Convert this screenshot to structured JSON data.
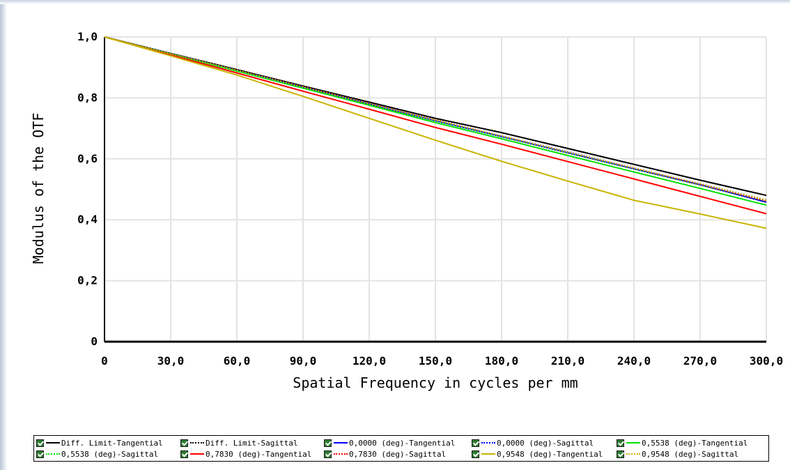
{
  "chart_data": {
    "type": "line",
    "title": "",
    "xlabel": "Spatial Frequency in cycles per mm",
    "ylabel": "Modulus of the OTF",
    "xlim": [
      0,
      300
    ],
    "ylim": [
      0,
      1
    ],
    "x_ticks": [
      {
        "v": 0,
        "label": "0"
      },
      {
        "v": 30,
        "label": "30,0"
      },
      {
        "v": 60,
        "label": "60,0"
      },
      {
        "v": 90,
        "label": "90,0"
      },
      {
        "v": 120,
        "label": "120,0"
      },
      {
        "v": 150,
        "label": "150,0"
      },
      {
        "v": 180,
        "label": "180,0"
      },
      {
        "v": 210,
        "label": "210,0"
      },
      {
        "v": 240,
        "label": "240,0"
      },
      {
        "v": 270,
        "label": "270,0"
      },
      {
        "v": 300,
        "label": "300,0"
      }
    ],
    "y_ticks": [
      {
        "v": 0,
        "label": "0"
      },
      {
        "v": 0.2,
        "label": "0,2"
      },
      {
        "v": 0.4,
        "label": "0,4"
      },
      {
        "v": 0.6,
        "label": "0,6"
      },
      {
        "v": 0.8,
        "label": "0,8"
      },
      {
        "v": 1.0,
        "label": "1,0"
      }
    ],
    "grid": true,
    "legend_position": "bottom",
    "series": [
      {
        "name": "Diff. Limit-Tangential",
        "color": "#000000",
        "dash": "solid",
        "x": [
          0,
          30,
          60,
          90,
          120,
          150,
          180,
          210,
          240,
          270,
          300
        ],
        "y": [
          1.0,
          0.946,
          0.893,
          0.839,
          0.786,
          0.733,
          0.686,
          0.634,
          0.582,
          0.53,
          0.48
        ]
      },
      {
        "name": "Diff. Limit-Sagittal",
        "color": "#000000",
        "dash": "dotted",
        "x": [
          0,
          30,
          60,
          90,
          120,
          150,
          180,
          210,
          240,
          270,
          300
        ],
        "y": [
          1.0,
          0.946,
          0.893,
          0.839,
          0.786,
          0.733,
          0.686,
          0.634,
          0.582,
          0.53,
          0.48
        ]
      },
      {
        "name": "0,0000 (deg)-Tangential",
        "color": "#0000ff",
        "dash": "solid",
        "x": [
          0,
          30,
          60,
          90,
          120,
          150,
          180,
          210,
          240,
          270,
          300
        ],
        "y": [
          1.0,
          0.945,
          0.89,
          0.835,
          0.78,
          0.725,
          0.673,
          0.62,
          0.567,
          0.515,
          0.458
        ]
      },
      {
        "name": "0,0000 (deg)-Sagittal",
        "color": "#0000ff",
        "dash": "dotted",
        "x": [
          0,
          30,
          60,
          90,
          120,
          150,
          180,
          210,
          240,
          270,
          300
        ],
        "y": [
          1.0,
          0.945,
          0.891,
          0.836,
          0.781,
          0.727,
          0.675,
          0.623,
          0.57,
          0.518,
          0.465
        ]
      },
      {
        "name": "0,5538 (deg)-Tangential",
        "color": "#00e000",
        "dash": "solid",
        "x": [
          0,
          30,
          60,
          90,
          120,
          150,
          180,
          210,
          240,
          270,
          300
        ],
        "y": [
          1.0,
          0.944,
          0.888,
          0.832,
          0.776,
          0.719,
          0.666,
          0.611,
          0.557,
          0.503,
          0.448
        ]
      },
      {
        "name": "0,5538 (deg)-Sagittal",
        "color": "#00e000",
        "dash": "dotted",
        "x": [
          0,
          30,
          60,
          90,
          120,
          150,
          180,
          210,
          240,
          270,
          300
        ],
        "y": [
          1.0,
          0.945,
          0.89,
          0.835,
          0.78,
          0.725,
          0.673,
          0.62,
          0.567,
          0.514,
          0.461
        ]
      },
      {
        "name": "0,7830 (deg)-Tangential",
        "color": "#ff0000",
        "dash": "solid",
        "x": [
          0,
          30,
          60,
          90,
          120,
          150,
          180,
          210,
          240,
          270,
          300
        ],
        "y": [
          1.0,
          0.941,
          0.882,
          0.822,
          0.763,
          0.703,
          0.648,
          0.591,
          0.534,
          0.477,
          0.42
        ]
      },
      {
        "name": "0,7830 (deg)-Sagittal",
        "color": "#ff0000",
        "dash": "dotted",
        "x": [
          0,
          30,
          60,
          90,
          120,
          150,
          180,
          210,
          240,
          270,
          300
        ],
        "y": [
          1.0,
          0.945,
          0.891,
          0.837,
          0.782,
          0.728,
          0.675,
          0.622,
          0.569,
          0.516,
          0.462
        ]
      },
      {
        "name": "0,9548 (deg)-Tangential",
        "color": "#c8b400",
        "dash": "solid",
        "x": [
          0,
          30,
          60,
          90,
          120,
          150,
          180,
          210,
          240,
          270,
          300
        ],
        "y": [
          1.0,
          0.938,
          0.875,
          0.805,
          0.733,
          0.661,
          0.592,
          0.527,
          0.464,
          0.419,
          0.372
        ]
      },
      {
        "name": "0,9548 (deg)-Sagittal",
        "color": "#c8b400",
        "dash": "dotted",
        "x": [
          0,
          30,
          60,
          90,
          120,
          150,
          180,
          210,
          240,
          270,
          300
        ],
        "y": [
          1.0,
          0.945,
          0.891,
          0.836,
          0.781,
          0.727,
          0.675,
          0.622,
          0.57,
          0.518,
          0.465
        ]
      }
    ]
  }
}
